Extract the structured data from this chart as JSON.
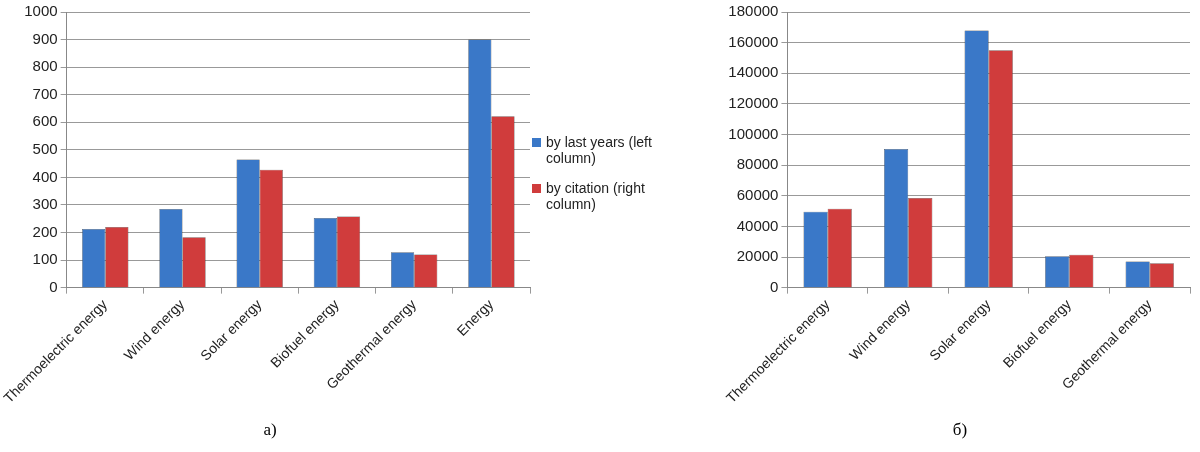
{
  "chart_data": [
    {
      "type": "bar",
      "categories": [
        "Thermoelectric energy",
        "Wind energy",
        "Solar energy",
        "Biofuel energy",
        "Geothermal energy",
        "Energy"
      ],
      "series": [
        {
          "name": "by last years (left column)",
          "color": "#3a78c8",
          "values": [
            213,
            285,
            465,
            253,
            128,
            900
          ]
        },
        {
          "name": "by citation (right column)",
          "color": "#d03c3c",
          "values": [
            220,
            183,
            428,
            258,
            120,
            622
          ]
        }
      ],
      "ylim": [
        0,
        1000
      ],
      "yticks": [
        0,
        100,
        200,
        300,
        400,
        500,
        600,
        700,
        800,
        900,
        1000
      ],
      "grid": "y",
      "legend": "right",
      "annotations": [
        "а)"
      ]
    },
    {
      "type": "bar",
      "categories": [
        "Thermoelectric energy",
        "Wind energy",
        "Solar energy",
        "Biofuel energy",
        "Geothermal energy"
      ],
      "series": [
        {
          "color": "#3a78c8",
          "values": [
            49500,
            90500,
            168000,
            20500,
            17000
          ]
        },
        {
          "color": "#d03c3c",
          "values": [
            51500,
            58500,
            155000,
            21500,
            16000
          ]
        }
      ],
      "ylim": [
        0,
        180000
      ],
      "yticks": [
        0,
        20000,
        40000,
        60000,
        80000,
        100000,
        120000,
        140000,
        160000,
        180000
      ],
      "grid": "y",
      "annotations": [
        "б)"
      ]
    }
  ]
}
